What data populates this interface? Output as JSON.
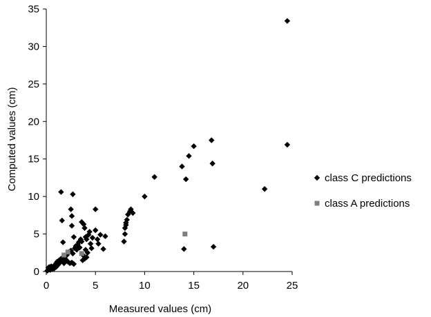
{
  "chart_data": {
    "type": "scatter",
    "xlabel": "Measured values (cm)",
    "ylabel": "Computed values (cm)",
    "xlim": [
      0,
      25
    ],
    "ylim": [
      0,
      35
    ],
    "xticks": [
      0,
      5,
      10,
      15,
      20,
      25
    ],
    "yticks": [
      0,
      5,
      10,
      15,
      20,
      25,
      30,
      35
    ],
    "grid": false,
    "legend_position": "right",
    "series": [
      {
        "name": "class C predictions",
        "marker": "diamond",
        "color": "#000000",
        "points": [
          [
            0.1,
            0.1
          ],
          [
            0.2,
            0.2
          ],
          [
            0.2,
            0.5
          ],
          [
            0.3,
            0.3
          ],
          [
            0.3,
            0.6
          ],
          [
            0.4,
            0.2
          ],
          [
            0.4,
            0.4
          ],
          [
            0.5,
            0.5
          ],
          [
            0.5,
            0.7
          ],
          [
            0.6,
            0.3
          ],
          [
            0.7,
            0.6
          ],
          [
            0.8,
            0.8
          ],
          [
            0.8,
            0.4
          ],
          [
            0.9,
            0.9
          ],
          [
            1.0,
            0.6
          ],
          [
            1.0,
            1.1
          ],
          [
            1.1,
            1.3
          ],
          [
            1.2,
            0.9
          ],
          [
            1.3,
            1.5
          ],
          [
            1.4,
            1.2
          ],
          [
            1.5,
            1.7
          ],
          [
            1.6,
            1.4
          ],
          [
            1.7,
            1.9
          ],
          [
            1.8,
            1.1
          ],
          [
            1.9,
            2.0
          ],
          [
            2.0,
            1.6
          ],
          [
            2.1,
            2.2
          ],
          [
            2.2,
            1.3
          ],
          [
            2.3,
            2.6
          ],
          [
            2.4,
            1.1
          ],
          [
            2.5,
            2.8
          ],
          [
            2.6,
            1.2
          ],
          [
            2.7,
            2.4
          ],
          [
            2.8,
            1.0
          ],
          [
            2.9,
            3.1
          ],
          [
            3.0,
            3.4
          ],
          [
            3.1,
            2.9
          ],
          [
            3.2,
            3.6
          ],
          [
            3.3,
            3.9
          ],
          [
            3.4,
            3.2
          ],
          [
            3.5,
            4.3
          ],
          [
            3.6,
            4.0
          ],
          [
            3.7,
            1.5
          ],
          [
            3.8,
            2.1
          ],
          [
            3.9,
            1.7
          ],
          [
            4.0,
            2.9
          ],
          [
            4.0,
            4.6
          ],
          [
            4.1,
            1.9
          ],
          [
            4.2,
            2.5
          ],
          [
            4.3,
            4.9
          ],
          [
            4.4,
            5.3
          ],
          [
            4.5,
            3.7
          ],
          [
            4.6,
            3.1
          ],
          [
            4.7,
            4.5
          ],
          [
            5.0,
            5.5
          ],
          [
            5.2,
            4.3
          ],
          [
            5.3,
            3.7
          ],
          [
            5.5,
            4.9
          ],
          [
            5.8,
            3.0
          ],
          [
            6.0,
            4.7
          ],
          [
            1.5,
            10.6
          ],
          [
            1.6,
            6.8
          ],
          [
            1.7,
            3.9
          ],
          [
            2.5,
            8.3
          ],
          [
            2.6,
            7.4
          ],
          [
            2.6,
            6.1
          ],
          [
            2.7,
            10.3
          ],
          [
            2.8,
            4.6
          ],
          [
            3.6,
            6.6
          ],
          [
            3.8,
            6.3
          ],
          [
            3.9,
            5.8
          ],
          [
            4.1,
            4.3
          ],
          [
            5.0,
            8.3
          ],
          [
            7.9,
            4.0
          ],
          [
            8.0,
            5.0
          ],
          [
            8.0,
            5.8
          ],
          [
            8.1,
            6.2
          ],
          [
            8.1,
            6.5
          ],
          [
            8.2,
            6.9
          ],
          [
            8.3,
            7.6
          ],
          [
            8.5,
            8.0
          ],
          [
            8.6,
            8.3
          ],
          [
            8.8,
            7.8
          ],
          [
            10.0,
            10.0
          ],
          [
            11.0,
            12.6
          ],
          [
            13.8,
            14.0
          ],
          [
            14.0,
            3.0
          ],
          [
            14.2,
            12.3
          ],
          [
            14.5,
            15.4
          ],
          [
            15.0,
            16.7
          ],
          [
            16.8,
            17.5
          ],
          [
            16.9,
            14.4
          ],
          [
            17.0,
            3.3
          ],
          [
            22.2,
            11.0
          ],
          [
            24.5,
            16.9
          ],
          [
            24.5,
            33.4
          ]
        ]
      },
      {
        "name": "class A predictions",
        "marker": "square",
        "color": "#808080",
        "points": [
          [
            1.8,
            2.2
          ],
          [
            2.2,
            2.6
          ],
          [
            3.6,
            2.4
          ],
          [
            14.1,
            5.0
          ]
        ]
      }
    ]
  }
}
